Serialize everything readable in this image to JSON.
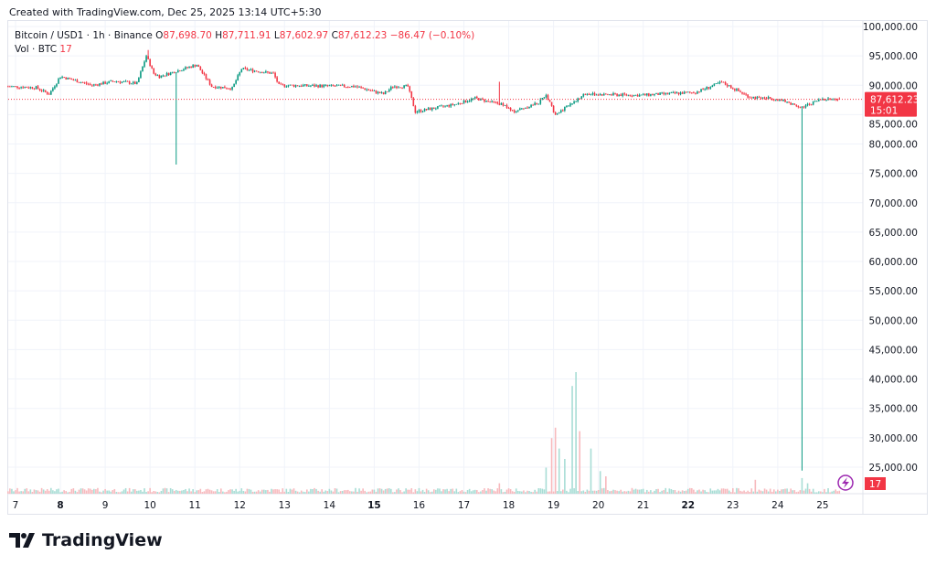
{
  "header": {
    "created": "Created with TradingView.com, Dec 25, 2025 13:14 UTC+5:30"
  },
  "legend": {
    "symbol": "Bitcoin / USD1 · 1h · Binance",
    "open_label": "O",
    "open": "87,698.70",
    "high_label": "H",
    "high": "87,711.91",
    "low_label": "L",
    "low": "87,602.97",
    "close_label": "C",
    "close": "87,612.23",
    "change": "−86.47 (−0.10%)",
    "vol_label": "Vol · BTC",
    "vol": "17"
  },
  "price_tag": {
    "price": "87,612.23",
    "countdown": "15:01"
  },
  "vol_tag": "17",
  "logo": "TradingView",
  "colors": {
    "up": "#089981",
    "down": "#f23645",
    "grid": "#f0f3fa",
    "text": "#131722",
    "vol_up": "#a8ddd5",
    "vol_down": "#f7b9bd",
    "lightning": "#9c27b0"
  },
  "chart_data": {
    "type": "candlestick",
    "interval": "1h",
    "ylim": [
      22000,
      101000
    ],
    "y_ticks": [
      "100,000.00",
      "95,000.00",
      "90,000.00",
      "85,000.00",
      "80,000.00",
      "75,000.00",
      "70,000.00",
      "65,000.00",
      "60,000.00",
      "55,000.00",
      "50,000.00",
      "45,000.00",
      "40,000.00",
      "35,000.00",
      "30,000.00",
      "25,000.00"
    ],
    "x_ticks": [
      {
        "label": "7",
        "date": "2025-12-07",
        "bold": false
      },
      {
        "label": "8",
        "date": "2025-12-08",
        "bold": true
      },
      {
        "label": "9",
        "date": "2025-12-09",
        "bold": false
      },
      {
        "label": "10",
        "date": "2025-12-10",
        "bold": false
      },
      {
        "label": "11",
        "date": "2025-12-11",
        "bold": false
      },
      {
        "label": "12",
        "date": "2025-12-12",
        "bold": false
      },
      {
        "label": "13",
        "date": "2025-12-13",
        "bold": false
      },
      {
        "label": "14",
        "date": "2025-12-14",
        "bold": false
      },
      {
        "label": "15",
        "date": "2025-12-15",
        "bold": true
      },
      {
        "label": "16",
        "date": "2025-12-16",
        "bold": false
      },
      {
        "label": "17",
        "date": "2025-12-17",
        "bold": false
      },
      {
        "label": "18",
        "date": "2025-12-18",
        "bold": false
      },
      {
        "label": "19",
        "date": "2025-12-19",
        "bold": false
      },
      {
        "label": "20",
        "date": "2025-12-20",
        "bold": false
      },
      {
        "label": "21",
        "date": "2025-12-21",
        "bold": false
      },
      {
        "label": "22",
        "date": "2025-12-22",
        "bold": true
      },
      {
        "label": "23",
        "date": "2025-12-23",
        "bold": false
      },
      {
        "label": "24",
        "date": "2025-12-24",
        "bold": false
      },
      {
        "label": "25",
        "date": "2025-12-25",
        "bold": false
      }
    ],
    "price_path": [
      [
        "2025-12-06T20:00",
        89800
      ],
      [
        "2025-12-07T11:00",
        89600
      ],
      [
        "2025-12-07T18:00",
        88500
      ],
      [
        "2025-12-08T00:00",
        91500
      ],
      [
        "2025-12-08T17:00",
        90000
      ],
      [
        "2025-12-09T05:00",
        90700
      ],
      [
        "2025-12-09T17:00",
        90300
      ],
      [
        "2025-12-09T22:00",
        95000
      ],
      [
        "2025-12-10T02:00",
        92000
      ],
      [
        "2025-12-10T05:00",
        91500
      ],
      [
        "2025-12-11T01:00",
        93500
      ],
      [
        "2025-12-11T09:00",
        89800
      ],
      [
        "2025-12-11T20:00",
        89500
      ],
      [
        "2025-12-12T01:00",
        92800
      ],
      [
        "2025-12-12T18:00",
        92000
      ],
      [
        "2025-12-12T21:00",
        90000
      ],
      [
        "2025-12-14T14:00",
        89800
      ],
      [
        "2025-12-15T05:00",
        88500
      ],
      [
        "2025-12-15T10:00",
        89800
      ],
      [
        "2025-12-15T18:00",
        89800
      ],
      [
        "2025-12-15T22:00",
        85500
      ],
      [
        "2025-12-16T20:00",
        86800
      ],
      [
        "2025-12-17T06:00",
        87800
      ],
      [
        "2025-12-17T16:00",
        87000
      ],
      [
        "2025-12-17T21:00",
        86800
      ],
      [
        "2025-12-18T02:00",
        85500
      ],
      [
        "2025-12-18T16:00",
        87000
      ],
      [
        "2025-12-18T20:00",
        88500
      ],
      [
        "2025-12-19T01:00",
        84800
      ],
      [
        "2025-12-19T07:00",
        86500
      ],
      [
        "2025-12-19T17:00",
        88500
      ],
      [
        "2025-12-20T22:00",
        88300
      ],
      [
        "2025-12-22T04:00",
        88800
      ],
      [
        "2025-12-22T18:00",
        90500
      ],
      [
        "2025-12-23T09:00",
        88000
      ],
      [
        "2025-12-23T23:00",
        87700
      ],
      [
        "2025-12-24T13:00",
        86300
      ],
      [
        "2025-12-25T00:00",
        87700
      ],
      [
        "2025-12-25T09:00",
        87612.23
      ]
    ],
    "wicks": [
      {
        "t": "2025-12-10T14:00",
        "low": 76500
      },
      {
        "t": "2025-12-24T13:00",
        "low": 24400
      },
      {
        "t": "2025-12-17T19:00",
        "high": 90600
      },
      {
        "t": "2025-12-09T23:00",
        "high": 96000
      }
    ],
    "volume_spikes": [
      [
        "2025-12-17T19:00",
        60
      ],
      [
        "2025-12-18T20:00",
        150
      ],
      [
        "2025-12-18T23:00",
        320
      ],
      [
        "2025-12-19T01:00",
        380
      ],
      [
        "2025-12-19T03:00",
        260
      ],
      [
        "2025-12-19T06:00",
        200
      ],
      [
        "2025-12-19T10:00",
        620
      ],
      [
        "2025-12-19T12:00",
        700
      ],
      [
        "2025-12-19T14:00",
        360
      ],
      [
        "2025-12-19T20:00",
        260
      ],
      [
        "2025-12-20T01:00",
        130
      ],
      [
        "2025-12-20T04:00",
        100
      ],
      [
        "2025-12-23T12:00",
        80
      ],
      [
        "2025-12-24T13:00",
        90
      ],
      [
        "2025-12-24T16:00",
        60
      ],
      [
        "2025-12-25T09:00",
        17
      ]
    ],
    "last_price": 87612.23
  }
}
